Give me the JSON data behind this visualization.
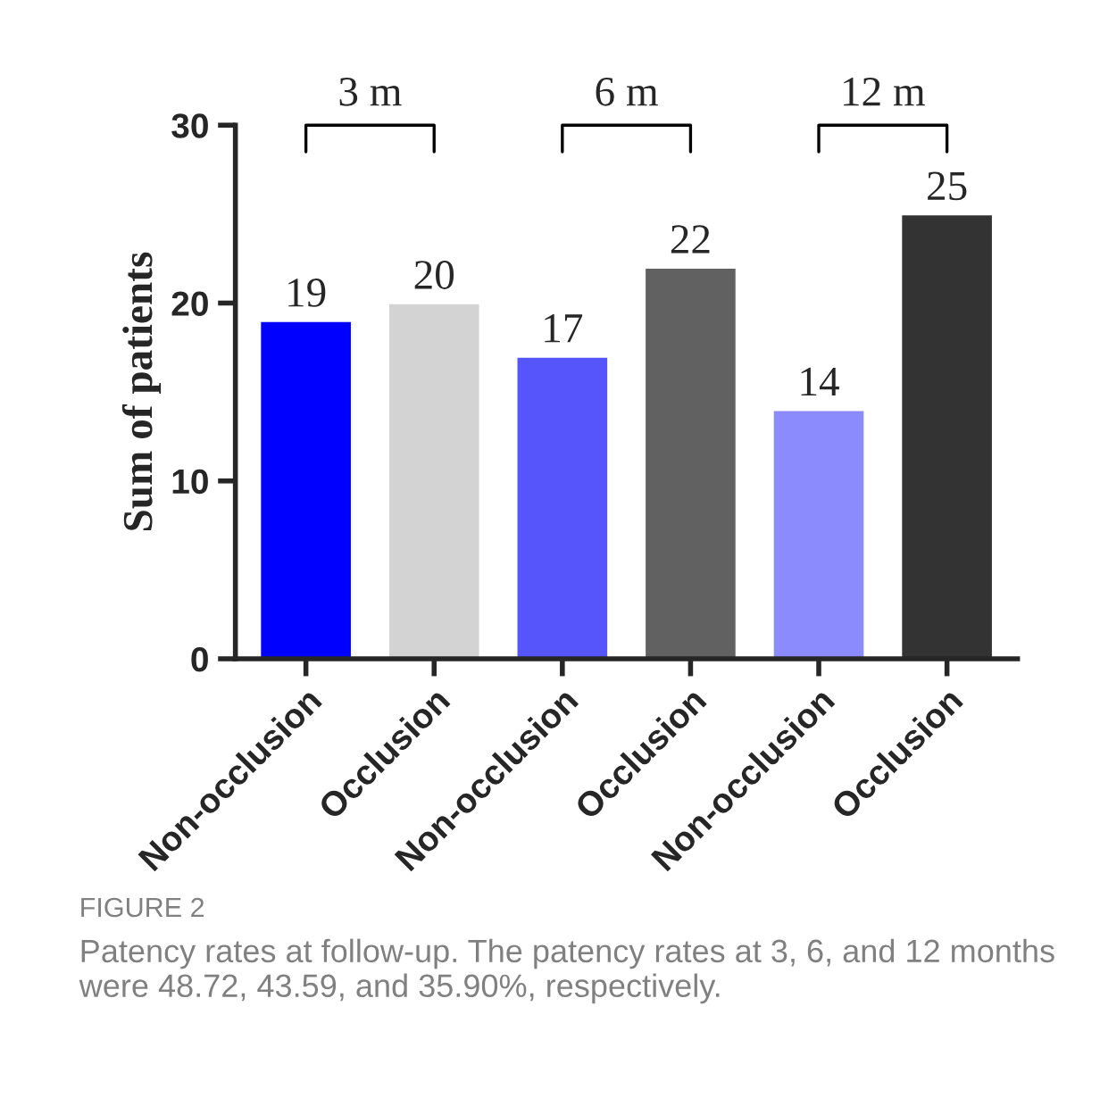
{
  "chart_data": {
    "type": "bar",
    "ylabel": "Sum of patients",
    "categories": [
      "Non-occlusion",
      "Occlusion",
      "Non-occlusion",
      "Occlusion",
      "Non-occlusion",
      "Occlusion"
    ],
    "values": [
      19,
      20,
      17,
      22,
      14,
      25
    ],
    "colors": [
      "#0000ff",
      "#d3d3d3",
      "#5555fb",
      "#616161",
      "#8b8bfd",
      "#333333"
    ],
    "ylim": [
      0,
      30
    ],
    "yticks": [
      0,
      10,
      20,
      30
    ],
    "data_labels": true,
    "grid": false,
    "legend": false,
    "annotations": [
      "3 m",
      "6 m",
      "12 m",
      "FIGURE 2",
      "Patency rates at follow-up. The patency rates at 3, 6, and 12 months were 48.72, 43.59, and 35.90%, respectively."
    ]
  }
}
